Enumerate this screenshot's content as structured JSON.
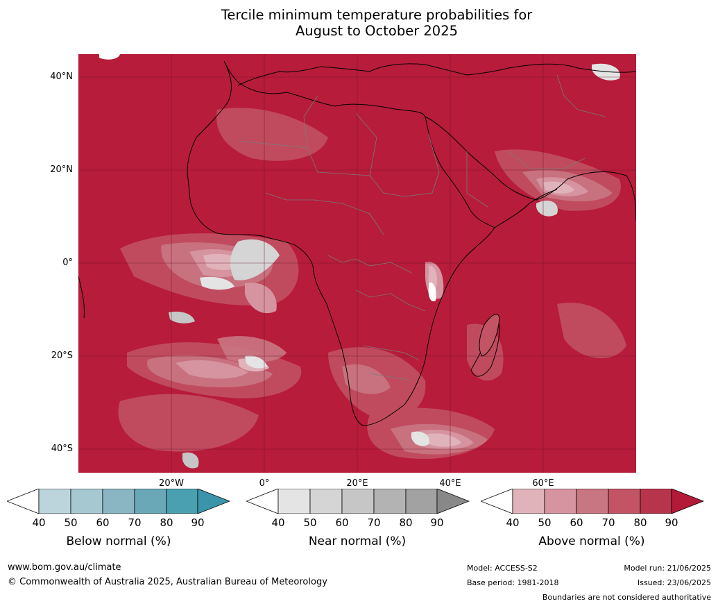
{
  "title": {
    "line1": "Tercile minimum temperature probabilities for",
    "line2": "August to October 2025"
  },
  "map": {
    "background_color": "#b71c3a",
    "latitude_labels": [
      "40°N",
      "20°N",
      "0°",
      "20°S",
      "40°S"
    ],
    "longitude_labels": [
      "20°W",
      "0°",
      "20°E",
      "40°E",
      "60°E"
    ],
    "grid": true
  },
  "legends": [
    {
      "name": "Below normal (%)",
      "ticks": [
        "40",
        "50",
        "60",
        "70",
        "80",
        "90"
      ],
      "colors": [
        "#ffffff",
        "#bcd4db",
        "#a6c8d0",
        "#89b6c2",
        "#6aa8b8",
        "#4a9fb0",
        "#3b95aa"
      ]
    },
    {
      "name": "Near normal (%)",
      "ticks": [
        "40",
        "50",
        "60",
        "70",
        "80",
        "90"
      ],
      "colors": [
        "#ffffff",
        "#e4e4e4",
        "#d5d5d5",
        "#c6c6c6",
        "#b3b3b3",
        "#a2a2a2",
        "#888888"
      ]
    },
    {
      "name": "Above normal (%)",
      "ticks": [
        "40",
        "50",
        "60",
        "70",
        "80",
        "90"
      ],
      "colors": [
        "#ffffff",
        "#e0b3bb",
        "#d5949f",
        "#c97683",
        "#c25466",
        "#b7344d",
        "#b21a38"
      ]
    }
  ],
  "footer": {
    "website": "www.bom.gov.au/climate",
    "copyright": "© Commonwealth of Australia 2025, Australian Bureau of Meteorology",
    "model": "Model: ACCESS-S2",
    "base_period": "Base period: 1981-2018",
    "model_run": "Model run: 21/06/2025",
    "issued": "Issued: 23/06/2025",
    "disclaimer": "Boundaries are not considered authoritative"
  }
}
